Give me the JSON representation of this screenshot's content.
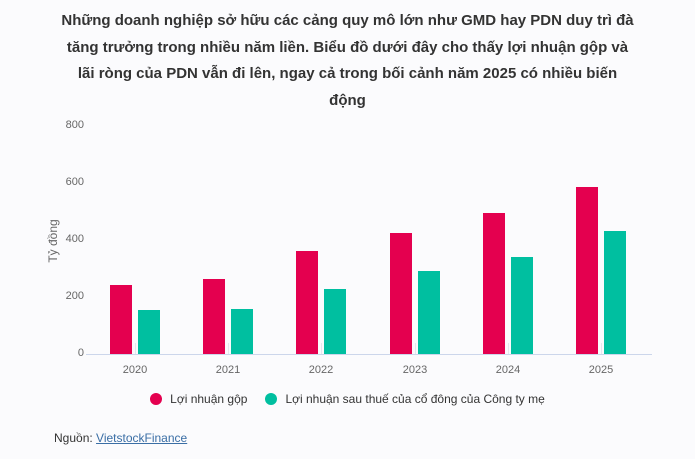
{
  "title": "Những doanh nghiệp sở hữu các cảng quy mô lớn như GMD hay PDN duy trì đà tăng trưởng trong nhiều năm liền. Biểu đồ dưới đây cho thấy lợi nhuận gộp và lãi ròng của PDN vẫn đi lên, ngay cả trong bối cảnh năm 2025 có nhiều biến động",
  "colors": {
    "gross_profit": "#e4004f",
    "net_profit": "#00bfa0"
  },
  "source": {
    "label": "Nguồn:",
    "link_text": "VietstockFinance"
  },
  "chart_data": {
    "type": "bar",
    "title": "Những doanh nghiệp sở hữu các cảng quy mô lớn như GMD hay PDN duy trì đà tăng trưởng trong nhiều năm liền. Biểu đồ dưới đây cho thấy lợi nhuận gộp và lãi ròng của PDN vẫn đi lên, ngay cả trong bối cảnh năm 2025 có nhiều biến động",
    "xlabel": "",
    "ylabel": "Tỷ đồng",
    "ylim": [
      0,
      800
    ],
    "yticks": [
      "0",
      "200",
      "400",
      "600",
      "800"
    ],
    "categories": [
      "2020",
      "2021",
      "2022",
      "2023",
      "2024",
      "2025"
    ],
    "series": [
      {
        "name": "Lợi nhuận gộp",
        "color": "#e4004f",
        "values": [
          242,
          263,
          361,
          425,
          495,
          586
        ]
      },
      {
        "name": "Lợi nhuận sau thuế của cổ đông của Công ty mẹ",
        "color": "#00bfa0",
        "values": [
          154,
          158,
          228,
          291,
          340,
          432
        ]
      }
    ],
    "grid": false,
    "legend_position": "bottom"
  }
}
